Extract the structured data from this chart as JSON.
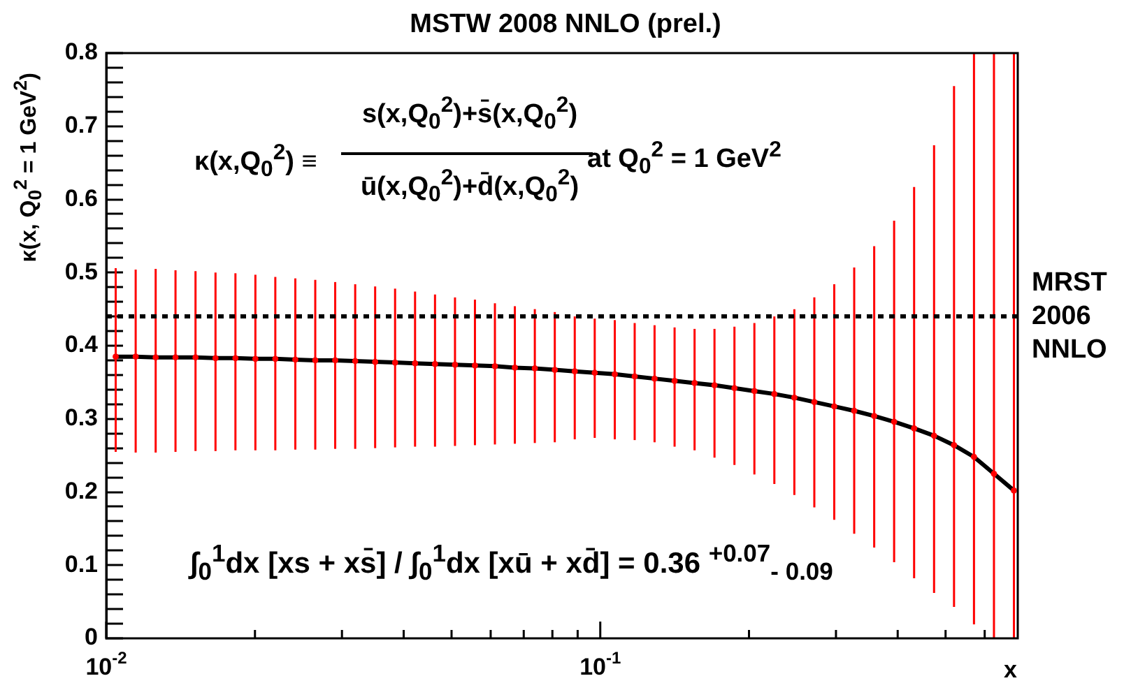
{
  "chart_data": {
    "type": "line",
    "title": "MSTW 2008 NNLO (prel.)",
    "xlabel": "x",
    "ylabel": "κ(x, Q$_{0}$$^{2}$ = 1 GeV$^{2}$)",
    "annotations": [
      "κ(x,Q$_{0}$$^{2}$) ≡",
      "s(x,Q$_{0}$$^{2}$)+s̄(x,Q$_{0}$$^{2}$)",
      "ū(x,Q$_{0}$$^{2}$)+d̄(x,Q$_{0}$$^{2}$)",
      "at Q$_{0}$$^{2}$ = 1 GeV$^{2}$",
      "∫$_{0}$$^{1}$dx [xs + xs̄] / ∫$_{0}$$^{1}$dx [xū + xd̄] = 0.36 $^{+0.07}$$_{- 0.09}$"
    ],
    "x": [
      0.01045,
      0.01147,
      0.01259,
      0.01381,
      0.01516,
      0.01664,
      0.01826,
      0.02004,
      0.02199,
      0.02414,
      0.02649,
      0.02907,
      0.03191,
      0.03502,
      0.03843,
      0.04218,
      0.04629,
      0.05081,
      0.05576,
      0.0612,
      0.06716,
      0.07371,
      0.0809,
      0.08879,
      0.09745,
      0.107,
      0.1174,
      0.1288,
      0.1414,
      0.1552,
      0.1703,
      0.1869,
      0.2051,
      0.2251,
      0.2471,
      0.2712,
      0.2976,
      0.3266,
      0.3585,
      0.3934,
      0.4318,
      0.4739,
      0.5201,
      0.5708,
      0.6265,
      0.6876
    ],
    "series": [
      {
        "type": "line",
        "color": "#000000",
        "values": [
          0.385,
          0.385,
          0.384,
          0.384,
          0.384,
          0.383,
          0.383,
          0.382,
          0.382,
          0.381,
          0.38,
          0.38,
          0.379,
          0.378,
          0.377,
          0.376,
          0.375,
          0.374,
          0.373,
          0.372,
          0.37,
          0.369,
          0.367,
          0.365,
          0.363,
          0.361,
          0.358,
          0.355,
          0.352,
          0.349,
          0.346,
          0.342,
          0.338,
          0.334,
          0.329,
          0.323,
          0.317,
          0.311,
          0.304,
          0.296,
          0.287,
          0.277,
          0.264,
          0.248,
          0.225,
          0.202
        ]
      },
      {
        "type": "scatter",
        "color": "#ff0000",
        "marker": "circle",
        "values": [
          0.385,
          0.385,
          0.384,
          0.384,
          0.384,
          0.383,
          0.383,
          0.382,
          0.382,
          0.381,
          0.38,
          0.38,
          0.379,
          0.378,
          0.377,
          0.376,
          0.375,
          0.374,
          0.373,
          0.372,
          0.37,
          0.369,
          0.367,
          0.365,
          0.363,
          0.361,
          0.358,
          0.355,
          0.352,
          0.349,
          0.346,
          0.342,
          0.338,
          0.334,
          0.329,
          0.323,
          0.317,
          0.311,
          0.304,
          0.296,
          0.287,
          0.277,
          0.264,
          0.248,
          0.225,
          0.202
        ],
        "errors": [
          [
            0.255,
            0.506
          ],
          [
            0.254,
            0.504
          ],
          [
            0.254,
            0.505
          ],
          [
            0.255,
            0.503
          ],
          [
            0.256,
            0.502
          ],
          [
            0.256,
            0.5
          ],
          [
            0.257,
            0.499
          ],
          [
            0.257,
            0.497
          ],
          [
            0.257,
            0.494
          ],
          [
            0.258,
            0.492
          ],
          [
            0.258,
            0.49
          ],
          [
            0.259,
            0.487
          ],
          [
            0.259,
            0.484
          ],
          [
            0.26,
            0.481
          ],
          [
            0.261,
            0.478
          ],
          [
            0.262,
            0.474
          ],
          [
            0.262,
            0.47
          ],
          [
            0.263,
            0.466
          ],
          [
            0.264,
            0.463
          ],
          [
            0.265,
            0.458
          ],
          [
            0.266,
            0.454
          ],
          [
            0.267,
            0.45
          ],
          [
            0.268,
            0.446
          ],
          [
            0.272,
            0.44
          ],
          [
            0.274,
            0.437
          ],
          [
            0.272,
            0.435
          ],
          [
            0.271,
            0.431
          ],
          [
            0.268,
            0.428
          ],
          [
            0.262,
            0.425
          ],
          [
            0.257,
            0.423
          ],
          [
            0.247,
            0.423
          ],
          [
            0.237,
            0.426
          ],
          [
            0.224,
            0.431
          ],
          [
            0.211,
            0.44
          ],
          [
            0.196,
            0.45
          ],
          [
            0.179,
            0.466
          ],
          [
            0.162,
            0.484
          ],
          [
            0.143,
            0.507
          ],
          [
            0.124,
            0.536
          ],
          [
            0.104,
            0.571
          ],
          [
            0.082,
            0.617
          ],
          [
            0.062,
            0.674
          ],
          [
            0.043,
            0.755
          ],
          [
            0.019,
            0.8
          ],
          [
            0,
            0.8
          ],
          [
            0,
            0.8
          ]
        ]
      }
    ],
    "xlim": [
      0.01,
      0.7
    ],
    "ylim": [
      0,
      0.8
    ],
    "xticks": [
      {
        "value": 0.01,
        "label": "10$^{-2}$"
      },
      {
        "value": 0.02,
        "label": null
      },
      {
        "value": 0.03,
        "label": null
      },
      {
        "value": 0.04,
        "label": null
      },
      {
        "value": 0.05,
        "label": null
      },
      {
        "value": 0.06,
        "label": null
      },
      {
        "value": 0.07,
        "label": null
      },
      {
        "value": 0.08,
        "label": null
      },
      {
        "value": 0.09,
        "label": null
      },
      {
        "value": 0.1,
        "label": "10$^{-1}$"
      },
      {
        "value": 0.2,
        "label": null
      },
      {
        "value": 0.3,
        "label": null
      },
      {
        "value": 0.4,
        "label": null
      },
      {
        "value": 0.5,
        "label": null
      },
      {
        "value": 0.6,
        "label": null
      }
    ],
    "yticks": [
      0,
      {
        "value": 0.02,
        "label": null
      },
      {
        "value": 0.04,
        "label": null
      },
      {
        "value": 0.06,
        "label": null
      },
      {
        "value": 0.08,
        "label": null
      },
      0.1,
      {
        "value": 0.12,
        "label": null
      },
      {
        "value": 0.14,
        "label": null
      },
      {
        "value": 0.16,
        "label": null
      },
      {
        "value": 0.18,
        "label": null
      },
      0.2,
      {
        "value": 0.22,
        "label": null
      },
      {
        "value": 0.24,
        "label": null
      },
      {
        "value": 0.26,
        "label": null
      },
      {
        "value": 0.28,
        "label": null
      },
      0.3,
      {
        "value": 0.32,
        "label": null
      },
      {
        "value": 0.34,
        "label": null
      },
      {
        "value": 0.36,
        "label": null
      },
      {
        "value": 0.38,
        "label": null
      },
      0.4,
      {
        "value": 0.42,
        "label": null
      },
      {
        "value": 0.44,
        "label": null
      },
      {
        "value": 0.46,
        "label": null
      },
      {
        "value": 0.48,
        "label": null
      },
      0.5,
      {
        "value": 0.52,
        "label": null
      },
      {
        "value": 0.54,
        "label": null
      },
      {
        "value": 0.56,
        "label": null
      },
      {
        "value": 0.58,
        "label": null
      },
      0.6,
      {
        "value": 0.62,
        "label": null
      },
      {
        "value": 0.64,
        "label": null
      },
      {
        "value": 0.66,
        "label": null
      },
      {
        "value": 0.68,
        "label": null
      },
      0.7,
      {
        "value": 0.72,
        "label": null
      },
      {
        "value": 0.74,
        "label": null
      },
      {
        "value": 0.76,
        "label": null
      },
      {
        "value": 0.78,
        "label": null
      },
      0.8
    ],
    "log": "x",
    "marker": "none",
    "ref_lines": [
      {
        "axis": "y",
        "value": 0.44,
        "label": "MRST 2006 NNLO",
        "color": "#000000",
        "line_style": "dotted"
      }
    ]
  }
}
